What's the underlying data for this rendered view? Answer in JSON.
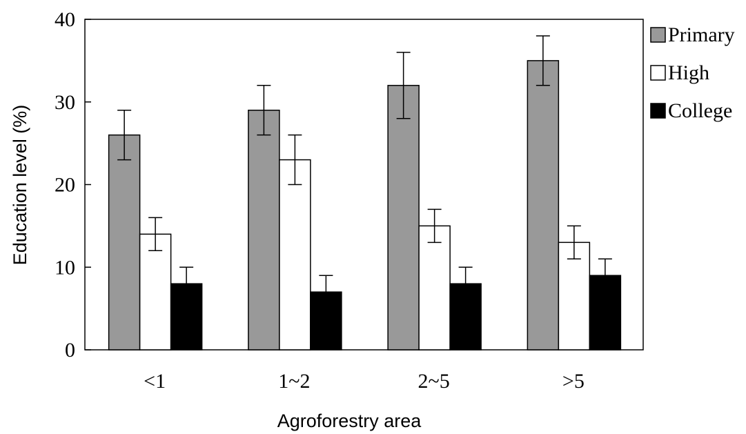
{
  "chart_data": {
    "type": "bar",
    "title": "",
    "xlabel": "Agroforestry area",
    "ylabel": "Education level (%)",
    "ylim": [
      0,
      40
    ],
    "yticks": [
      0,
      10,
      20,
      30,
      40
    ],
    "grid": false,
    "legend_position": "right",
    "categories": [
      "<1",
      "1~2",
      "2~5",
      ">5"
    ],
    "series": [
      {
        "name": "Primary",
        "color": "#999999",
        "values": [
          26,
          29,
          32,
          35
        ],
        "errors": [
          3,
          3,
          4,
          3
        ]
      },
      {
        "name": "High",
        "color": "#ffffff",
        "values": [
          14,
          23,
          15,
          13
        ],
        "errors": [
          2,
          3,
          2,
          2
        ]
      },
      {
        "name": "College",
        "color": "#000000",
        "values": [
          8,
          7,
          8,
          9
        ],
        "errors": [
          2,
          2,
          2,
          2
        ]
      }
    ]
  }
}
